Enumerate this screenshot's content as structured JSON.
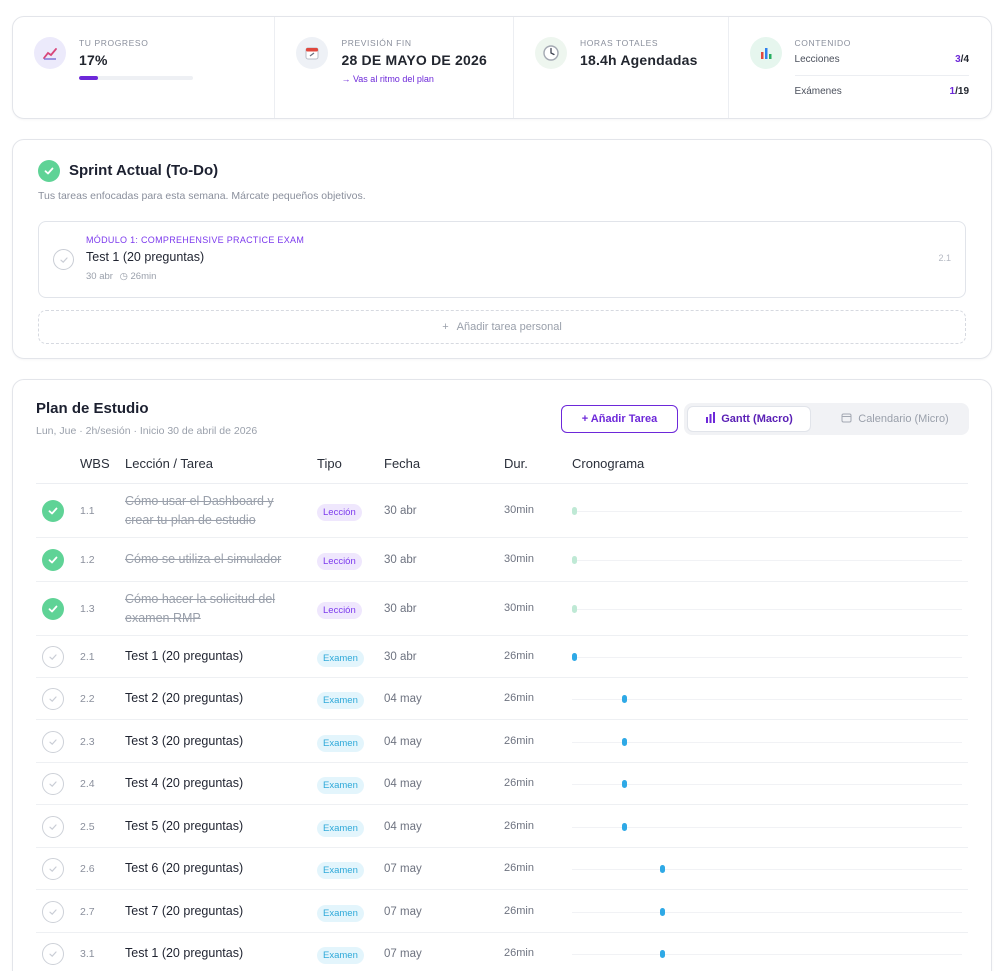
{
  "stats": {
    "progress": {
      "caption": "TU PROGRESO",
      "value": "17%",
      "fraction": 0.17,
      "icon": "trend-chart-icon"
    },
    "forecast": {
      "caption": "PREVISIÓN FIN",
      "value": "28 DE MAYO DE 2026",
      "link": "→ Vas al ritmo del plan",
      "icon": "calendar-icon"
    },
    "hours": {
      "caption": "HORAS TOTALES",
      "value": "18.4h Agendadas",
      "icon": "clock-icon"
    },
    "content": {
      "caption": "CONTENIDO",
      "icon": "bar-chart-icon",
      "lessons_label": "Lecciones",
      "lessons_done": "3",
      "lessons_total": "/4",
      "exams_label": "Exámenes",
      "exams_done": "1",
      "exams_total": "/19"
    }
  },
  "sprint": {
    "title": "Sprint Actual (To-Do)",
    "subtitle": "Tus tareas enfocadas para esta semana. Márcate pequeños objetivos.",
    "task": {
      "module": "MÓDULO 1: COMPREHENSIVE PRACTICE EXAM",
      "name": "Test 1 (20 preguntas)",
      "date": "30 abr",
      "duration": "26min",
      "wbs": "2.1"
    },
    "add_label": "Añadir tarea personal"
  },
  "plan": {
    "title": "Plan de Estudio",
    "subtitle": "Lun, Jue · 2h/sesión · Inicio 30 de abril de 2026",
    "add_task": "+ Añadir Tarea",
    "view_gantt": "Gantt (Macro)",
    "view_calendar": "Calendario (Micro)",
    "columns": {
      "wbs": "WBS",
      "lesson": "Lección / Tarea",
      "type": "Tipo",
      "date": "Fecha",
      "duration": "Dur.",
      "timeline": "Cronograma"
    },
    "rows": [
      {
        "done": true,
        "wbs": "1.1",
        "lesson": "Cómo usar el Dashboard y crear tu plan de estudio",
        "type": "Lección",
        "kind": "leccion",
        "date": "30 abr",
        "duration": "30min",
        "day_offset": 0
      },
      {
        "done": true,
        "wbs": "1.2",
        "lesson": "Cómo se utiliza el simulador",
        "type": "Lección",
        "kind": "leccion",
        "date": "30 abr",
        "duration": "30min",
        "day_offset": 0
      },
      {
        "done": true,
        "wbs": "1.3",
        "lesson": "Cómo hacer la solicitud del examen RMP",
        "type": "Lección",
        "kind": "leccion",
        "date": "30 abr",
        "duration": "30min",
        "day_offset": 0
      },
      {
        "done": false,
        "wbs": "2.1",
        "lesson": "Test 1 (20 preguntas)",
        "type": "Examen",
        "kind": "examen",
        "date": "30 abr",
        "duration": "26min",
        "day_offset": 0
      },
      {
        "done": false,
        "wbs": "2.2",
        "lesson": "Test 2 (20 preguntas)",
        "type": "Examen",
        "kind": "examen",
        "date": "04 may",
        "duration": "26min",
        "day_offset": 4
      },
      {
        "done": false,
        "wbs": "2.3",
        "lesson": "Test 3 (20 preguntas)",
        "type": "Examen",
        "kind": "examen",
        "date": "04 may",
        "duration": "26min",
        "day_offset": 4
      },
      {
        "done": false,
        "wbs": "2.4",
        "lesson": "Test 4 (20 preguntas)",
        "type": "Examen",
        "kind": "examen",
        "date": "04 may",
        "duration": "26min",
        "day_offset": 4
      },
      {
        "done": false,
        "wbs": "2.5",
        "lesson": "Test 5 (20 preguntas)",
        "type": "Examen",
        "kind": "examen",
        "date": "04 may",
        "duration": "26min",
        "day_offset": 4
      },
      {
        "done": false,
        "wbs": "2.6",
        "lesson": "Test 6 (20 preguntas)",
        "type": "Examen",
        "kind": "examen",
        "date": "07 may",
        "duration": "26min",
        "day_offset": 7
      },
      {
        "done": false,
        "wbs": "2.7",
        "lesson": "Test 7 (20 preguntas)",
        "type": "Examen",
        "kind": "examen",
        "date": "07 may",
        "duration": "26min",
        "day_offset": 7
      },
      {
        "done": false,
        "wbs": "3.1",
        "lesson": "Test 1 (20 preguntas)",
        "type": "Examen",
        "kind": "examen",
        "date": "07 may",
        "duration": "26min",
        "day_offset": 7
      }
    ]
  },
  "colors": {
    "accent": "#6d28d9",
    "done": "#5fd396",
    "exam": "#2fa9e6",
    "lesson_bar": "#bfe9d5"
  }
}
